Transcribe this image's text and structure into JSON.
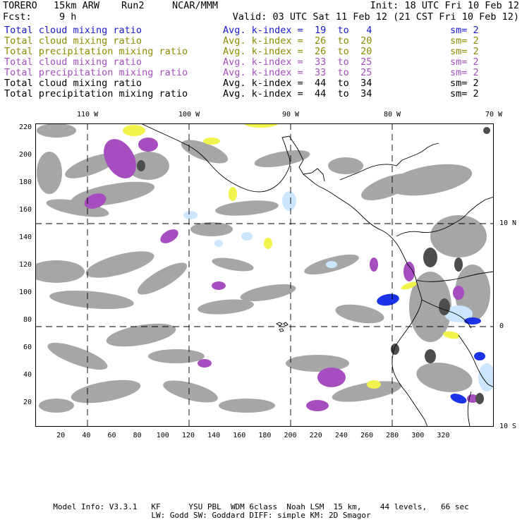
{
  "header": {
    "model": "TORERO",
    "resolution": "15km ARW",
    "run": "Run2",
    "org": "NCAR/MMM",
    "init": "Init: 18 UTC Fri 10 Feb 12",
    "fcst_label": "Fcst:",
    "fcst_value": "9 h",
    "valid": "Valid: 03 UTC Sat 11 Feb 12 (21 CST Fri 10 Feb 12)"
  },
  "fields": [
    {
      "label": "Total cloud mixing ratio",
      "range": "Avg. k-index =  19  to   4",
      "sm": "sm= 2",
      "color": "#1a1acc"
    },
    {
      "label": "Total cloud mixing ratio",
      "range": "Avg. k-index =  26  to  20",
      "sm": "sm= 2",
      "color": "#8b8b00"
    },
    {
      "label": "Total precipitation mixing ratio",
      "range": "Avg. k-index =  26  to  20",
      "sm": "sm= 2",
      "color": "#8b8b00"
    },
    {
      "label": "Total cloud mixing ratio",
      "range": "Avg. k-index =  33  to  25",
      "sm": "sm= 2",
      "color": "#a64dbf"
    },
    {
      "label": "Total precipitation mixing ratio",
      "range": "Avg. k-index =  33  to  25",
      "sm": "sm= 2",
      "color": "#a64dbf"
    },
    {
      "label": "Total cloud mixing ratio",
      "range": "Avg. k-index =  44  to  34",
      "sm": "sm= 2",
      "color": "#000000"
    },
    {
      "label": "Total precipitation mixing ratio",
      "range": "Avg. k-index =  44  to  34",
      "sm": "sm= 2",
      "color": "#000000"
    }
  ],
  "map": {
    "lon_labels": [
      "110 W",
      "100 W",
      "90 W",
      "80 W",
      "70 W"
    ],
    "lat_labels": [
      "10 N",
      "0",
      "10 S"
    ],
    "x_ticks": [
      "20",
      "40",
      "60",
      "80",
      "100",
      "120",
      "140",
      "160",
      "180",
      "200",
      "220",
      "240",
      "260",
      "280",
      "300",
      "320"
    ],
    "y_ticks": [
      "220",
      "200",
      "180",
      "160",
      "140",
      "120",
      "100",
      "80",
      "60",
      "40",
      "20"
    ],
    "colors": {
      "gray": "#a6a6a6",
      "dark": "#4d4d4d",
      "purple": "#a64dbf",
      "yellow": "#f2f24d",
      "lightblue": "#cce6ff",
      "blue": "#1a33e6"
    }
  },
  "footer": {
    "line1": "Model Info: V3.3.1   KF      YSU PBL  WDM 6class  Noah LSM  15 km,    44 levels,   66 sec",
    "line2": "LW: Godd SW: Goddard DIFF: simple KM: 2D Smagor"
  }
}
